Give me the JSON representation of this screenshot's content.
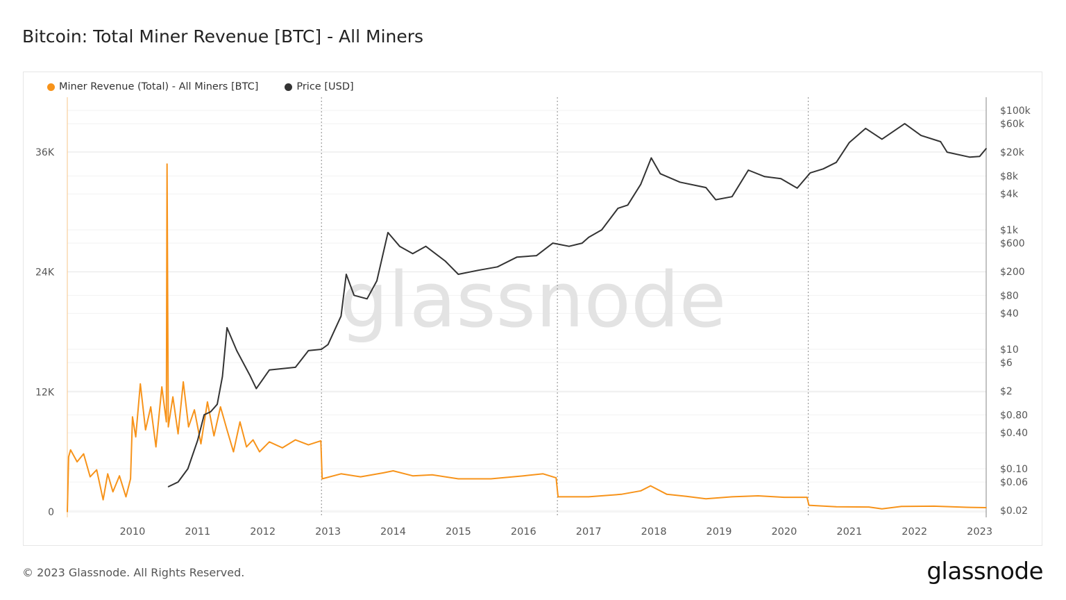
{
  "title": "Bitcoin: Total Miner Revenue [BTC] - All Miners",
  "footer": "© 2023 Glassnode. All Rights Reserved.",
  "logo": "glassnode",
  "watermark": "glassnode",
  "chart_data": {
    "type": "line",
    "title": "Bitcoin: Total Miner Revenue [BTC] - All Miners",
    "grid": true,
    "legend_position": "top-left",
    "xlim": [
      2009.0,
      2023.1
    ],
    "x_ticks": [
      "2010",
      "2011",
      "2012",
      "2013",
      "2014",
      "2015",
      "2016",
      "2017",
      "2018",
      "2019",
      "2020",
      "2021",
      "2022",
      "2023"
    ],
    "y_left": {
      "scale": "linear",
      "lim": [
        0,
        42000
      ],
      "ticks": [
        0,
        12000,
        24000,
        36000
      ],
      "tick_labels": [
        "0",
        "12K",
        "24K",
        "36K"
      ]
    },
    "y_right": {
      "scale": "log",
      "lim": [
        0.014,
        140000
      ],
      "ticks": [
        100000,
        60000,
        20000,
        8000,
        4000,
        1000,
        600,
        200,
        80,
        40,
        10,
        6,
        2,
        0.8,
        0.4,
        0.1,
        0.06,
        0.02
      ],
      "tick_labels": [
        "$100k",
        "$60k",
        "$20k",
        "$8k",
        "$4k",
        "$1k",
        "$600",
        "$200",
        "$80",
        "$40",
        "$10",
        "$6",
        "$2",
        "$0.80",
        "$0.40",
        "$0.10",
        "$0.06",
        "$0.02"
      ]
    },
    "halving_markers": [
      2012.9,
      2016.52,
      2020.37
    ],
    "series": [
      {
        "name": "Miner Revenue (Total) - All Miners [BTC]",
        "axis": "left",
        "color": "#f7931a",
        "x": [
          2009.0,
          2009.02,
          2009.05,
          2009.15,
          2009.25,
          2009.35,
          2009.45,
          2009.55,
          2009.62,
          2009.7,
          2009.8,
          2009.9,
          2009.97,
          2010.0,
          2010.05,
          2010.12,
          2010.2,
          2010.28,
          2010.36,
          2010.45,
          2010.52,
          2010.53,
          2010.55,
          2010.62,
          2010.7,
          2010.78,
          2010.86,
          2010.95,
          2011.05,
          2011.15,
          2011.25,
          2011.35,
          2011.45,
          2011.55,
          2011.65,
          2011.75,
          2011.85,
          2011.95,
          2012.1,
          2012.3,
          2012.5,
          2012.7,
          2012.89,
          2012.91,
          2013.2,
          2013.5,
          2013.85,
          2014.0,
          2014.3,
          2014.6,
          2015.0,
          2015.5,
          2016.0,
          2016.3,
          2016.5,
          2016.53,
          2017.0,
          2017.5,
          2017.8,
          2017.95,
          2018.2,
          2018.5,
          2018.8,
          2019.2,
          2019.6,
          2020.0,
          2020.35,
          2020.38,
          2020.8,
          2021.3,
          2021.5,
          2021.8,
          2022.3,
          2022.8,
          2023.1
        ],
        "y": [
          0,
          5500,
          6200,
          5000,
          5800,
          3500,
          4200,
          1200,
          3800,
          2000,
          3600,
          1500,
          3300,
          9500,
          7500,
          12800,
          8200,
          10500,
          6500,
          12500,
          9000,
          34800,
          8500,
          11500,
          7800,
          13000,
          8500,
          10200,
          6800,
          11000,
          7600,
          10500,
          8200,
          6000,
          9000,
          6500,
          7200,
          6000,
          7000,
          6400,
          7200,
          6700,
          7100,
          3300,
          3800,
          3500,
          3900,
          4100,
          3600,
          3700,
          3300,
          3300,
          3600,
          3800,
          3400,
          1500,
          1500,
          1750,
          2100,
          2600,
          1750,
          1550,
          1300,
          1500,
          1600,
          1450,
          1450,
          650,
          500,
          480,
          300,
          540,
          560,
          450,
          420
        ]
      },
      {
        "name": "Price [USD]",
        "axis": "right",
        "color": "#333333",
        "x": [
          2010.55,
          2010.7,
          2010.85,
          2011.0,
          2011.1,
          2011.2,
          2011.3,
          2011.38,
          2011.45,
          2011.6,
          2011.8,
          2011.9,
          2012.1,
          2012.5,
          2012.7,
          2012.9,
          2013.0,
          2013.2,
          2013.28,
          2013.4,
          2013.6,
          2013.75,
          2013.92,
          2014.1,
          2014.3,
          2014.5,
          2014.8,
          2015.0,
          2015.3,
          2015.6,
          2015.9,
          2016.2,
          2016.45,
          2016.7,
          2016.9,
          2017.0,
          2017.2,
          2017.45,
          2017.6,
          2017.8,
          2017.96,
          2018.1,
          2018.4,
          2018.8,
          2018.95,
          2019.2,
          2019.45,
          2019.7,
          2019.95,
          2020.2,
          2020.4,
          2020.6,
          2020.8,
          2021.0,
          2021.25,
          2021.5,
          2021.85,
          2022.1,
          2022.4,
          2022.5,
          2022.85,
          2023.0,
          2023.1
        ],
        "y": [
          0.05,
          0.06,
          0.1,
          0.3,
          0.8,
          0.9,
          1.2,
          3.5,
          23,
          9.5,
          3.7,
          2.2,
          4.5,
          5,
          9.5,
          10,
          12,
          36,
          180,
          80,
          70,
          140,
          900,
          530,
          400,
          530,
          300,
          180,
          210,
          240,
          350,
          370,
          600,
          530,
          600,
          750,
          1000,
          2300,
          2600,
          5800,
          16000,
          8700,
          6300,
          5100,
          3200,
          3600,
          10000,
          7800,
          7200,
          5000,
          9000,
          10500,
          13500,
          29000,
          50000,
          33000,
          60000,
          38000,
          30000,
          20000,
          16500,
          17000,
          23000
        ]
      }
    ]
  }
}
